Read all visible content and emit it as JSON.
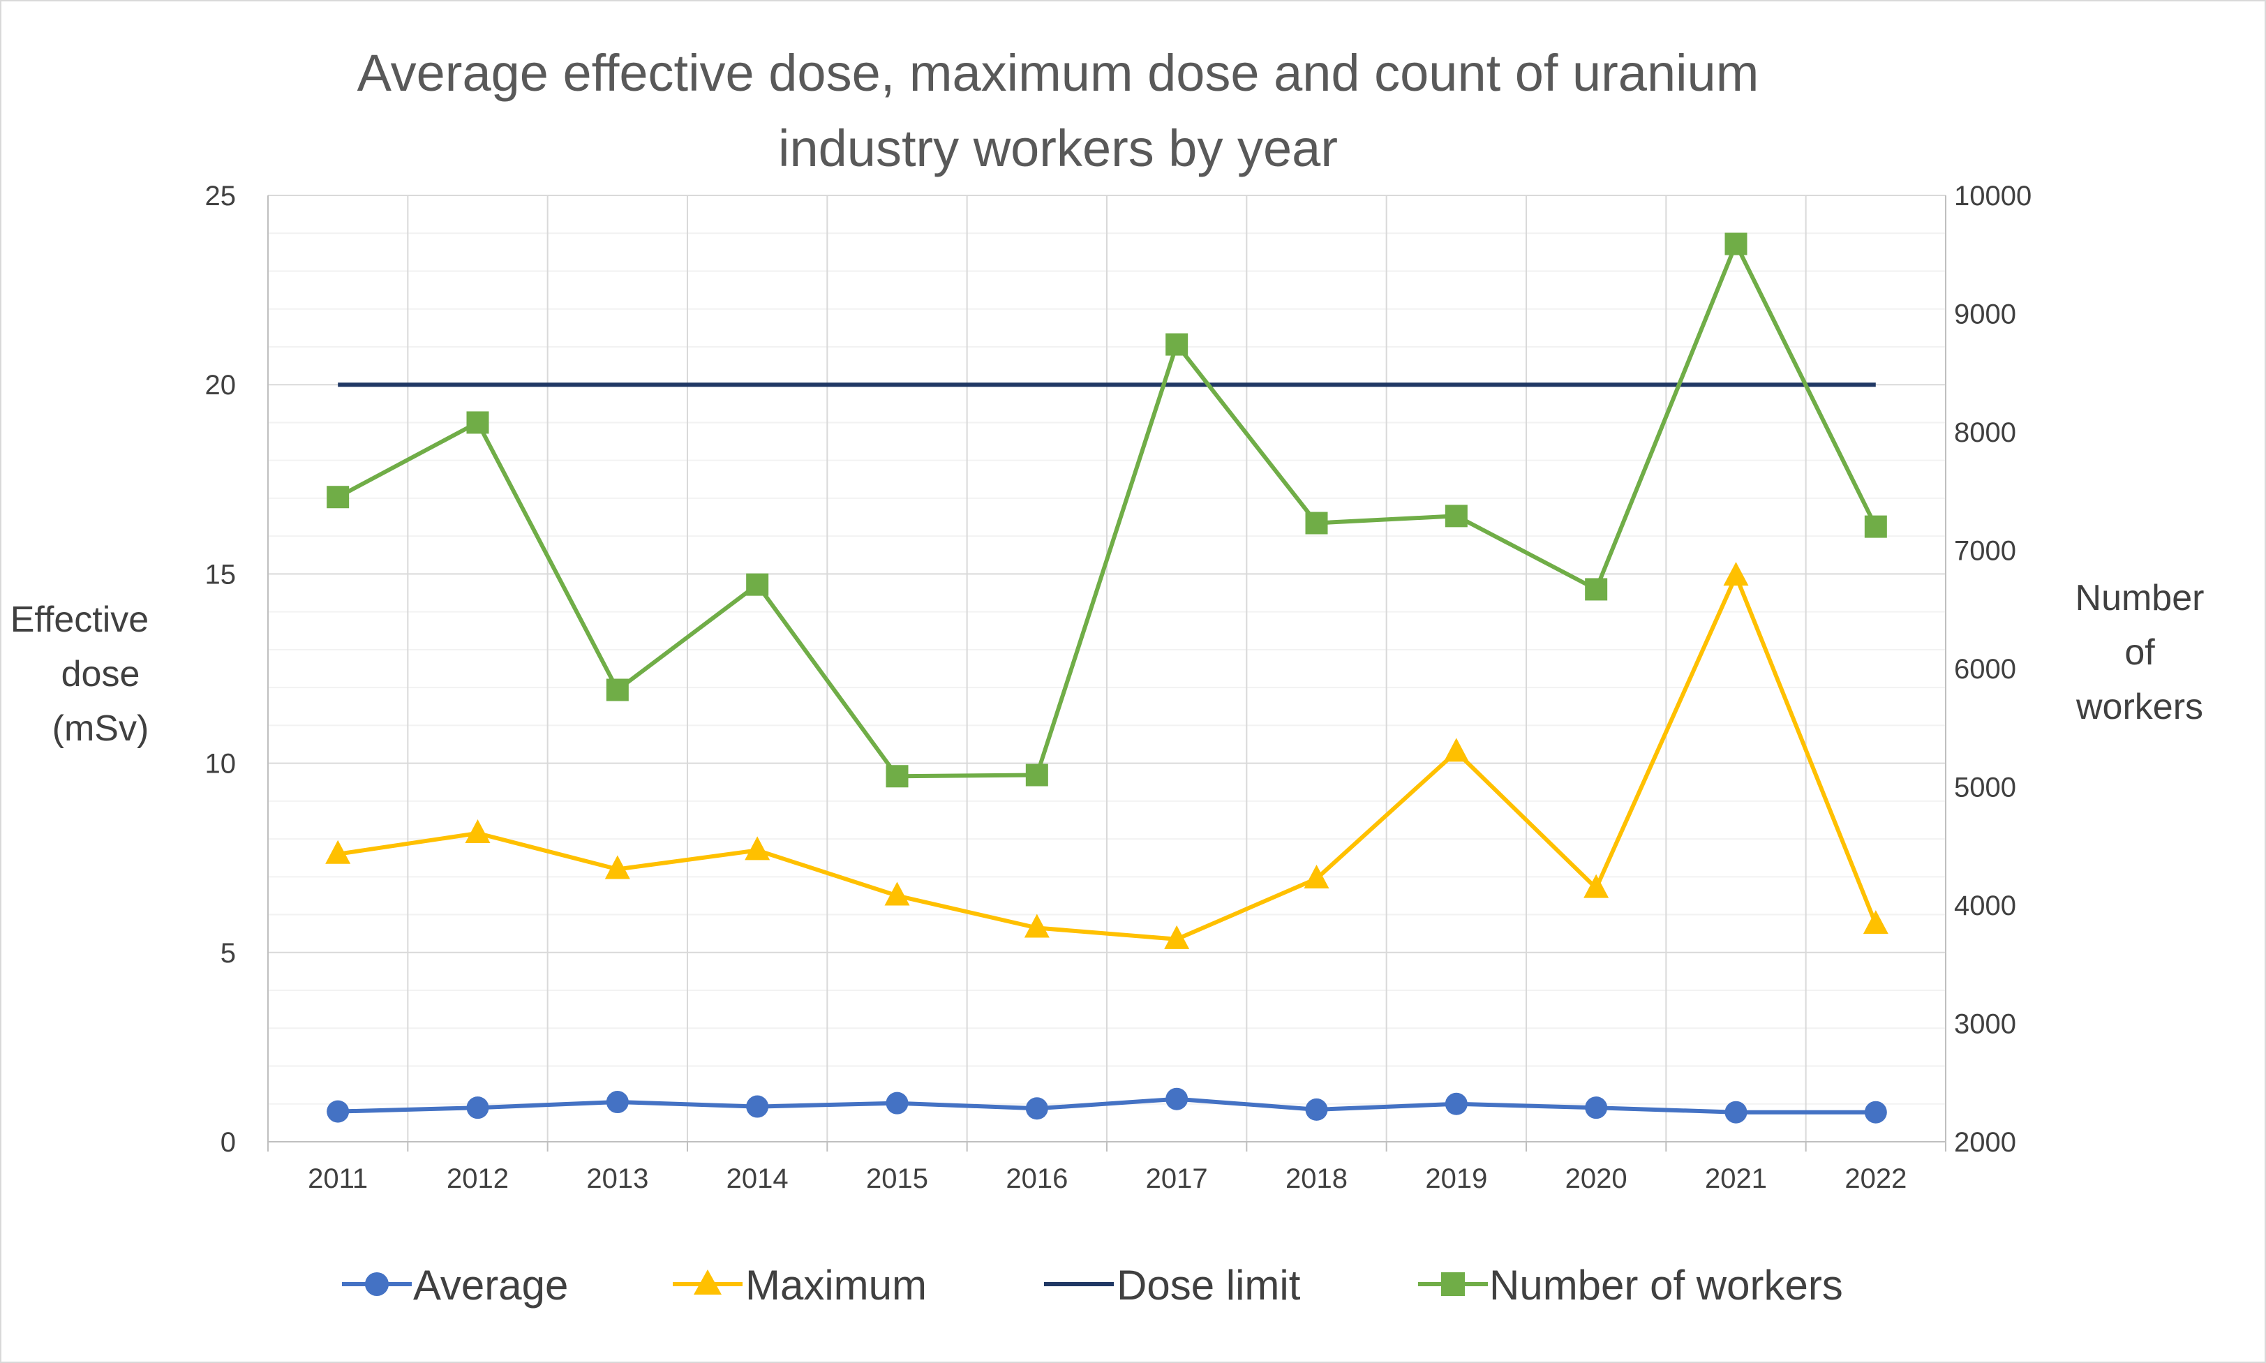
{
  "chart_data": {
    "type": "line",
    "title_lines": [
      "Average effective dose, maximum dose and count of uranium",
      "industry workers by year"
    ],
    "categories": [
      "2011",
      "2012",
      "2013",
      "2014",
      "2015",
      "2016",
      "2017",
      "2018",
      "2019",
      "2020",
      "2021",
      "2022"
    ],
    "y_left": {
      "label_lines": [
        "Effective",
        "dose",
        "(mSv)"
      ],
      "min": 0,
      "max": 25,
      "major": 5,
      "minor": 1,
      "ticks": [
        "0",
        "5",
        "10",
        "15",
        "20",
        "25"
      ]
    },
    "y_right": {
      "label_lines": [
        "Number",
        "of",
        "workers"
      ],
      "min": 2000,
      "max": 10000,
      "major": 1000,
      "ticks": [
        "2000",
        "3000",
        "4000",
        "5000",
        "6000",
        "7000",
        "8000",
        "9000",
        "10000"
      ]
    },
    "grid": true,
    "legend_position": "bottom",
    "series": [
      {
        "name": "Average",
        "axis": "left",
        "marker": "circle",
        "color": "#4472C4",
        "values": [
          0.8,
          0.9,
          1.05,
          0.93,
          1.02,
          0.88,
          1.13,
          0.85,
          1.0,
          0.9,
          0.78,
          0.78
        ]
      },
      {
        "name": "Maximum",
        "axis": "left",
        "marker": "triangle",
        "color": "#FFC000",
        "values": [
          7.6,
          8.15,
          7.2,
          7.7,
          6.5,
          5.65,
          5.35,
          6.95,
          10.3,
          6.7,
          14.95,
          5.75
        ]
      },
      {
        "name": "Dose limit",
        "axis": "left",
        "marker": "none",
        "color": "#203864",
        "values": [
          20,
          20,
          20,
          20,
          20,
          20,
          20,
          20,
          20,
          20,
          20,
          20
        ]
      },
      {
        "name": "Number of workers",
        "axis": "right",
        "marker": "square",
        "color": "#70AD47",
        "values": [
          7450,
          8080,
          5820,
          6710,
          5090,
          5100,
          8740,
          7230,
          7290,
          6670,
          9590,
          7200
        ]
      }
    ]
  }
}
